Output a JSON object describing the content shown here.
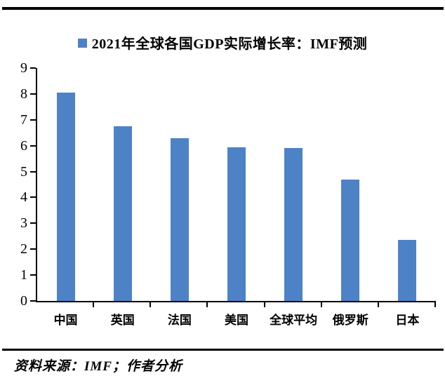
{
  "page": {
    "background": "#ffffff",
    "rule_color": "#000000"
  },
  "legend": {
    "marker_color": "#4E82C6",
    "label": "2021年全球各国GDP实际增长率：IMF预测"
  },
  "chart_data": {
    "type": "bar",
    "title": "2021年全球各国GDP实际增长率：IMF预测",
    "categories": [
      "中国",
      "英国",
      "法国",
      "美国",
      "全球平均",
      "俄罗斯",
      "日本"
    ],
    "values": [
      8.05,
      6.75,
      6.3,
      5.95,
      5.9,
      4.7,
      2.35
    ],
    "xlabel": "",
    "ylabel": "",
    "ylim": [
      0,
      9
    ],
    "yticks": [
      0,
      1,
      2,
      3,
      4,
      5,
      6,
      7,
      8,
      9
    ],
    "bar_color": "#4E82C6",
    "axis_color": "#000000",
    "grid": false,
    "legend_position": "top"
  },
  "footer": {
    "source_text": "资料来源：IMF；作者分析"
  }
}
